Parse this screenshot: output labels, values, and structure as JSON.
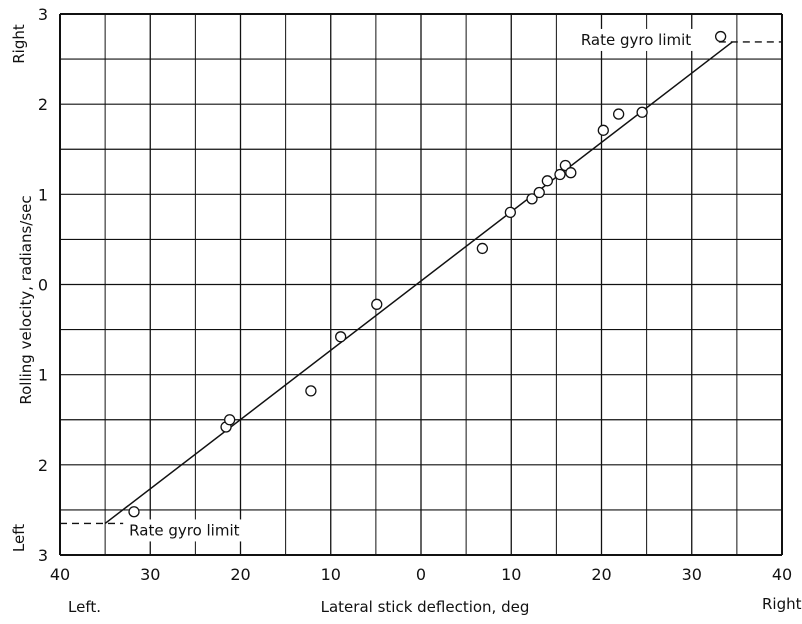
{
  "chart_data": {
    "type": "scatter",
    "title": "",
    "xlabel": "Lateral stick deflection, deg",
    "ylabel": "Rolling velocity, radians/sec",
    "xlim": [
      -40,
      40
    ],
    "ylim": [
      -3,
      3
    ],
    "x_ticks": [
      {
        "value": -40,
        "label": "40"
      },
      {
        "value": -30,
        "label": "30"
      },
      {
        "value": -20,
        "label": "20"
      },
      {
        "value": -10,
        "label": "10"
      },
      {
        "value": 0,
        "label": "0"
      },
      {
        "value": 10,
        "label": "10"
      },
      {
        "value": 20,
        "label": "20"
      },
      {
        "value": 30,
        "label": "30"
      },
      {
        "value": 40,
        "label": "40"
      }
    ],
    "y_ticks": [
      {
        "value": 3,
        "label": "3"
      },
      {
        "value": 2,
        "label": "2"
      },
      {
        "value": 1,
        "label": "1"
      },
      {
        "value": 0,
        "label": "0"
      },
      {
        "value": -1,
        "label": "1"
      },
      {
        "value": -2,
        "label": "2"
      },
      {
        "value": -3,
        "label": "3"
      }
    ],
    "x_side_labels": {
      "left": "Left.",
      "right": "Right"
    },
    "y_side_labels": {
      "top": "Right",
      "bottom": "Left"
    },
    "grid": true,
    "minor_grid_step_y": 0.5,
    "points": [
      {
        "x": -31.8,
        "y": -2.52
      },
      {
        "x": -21.6,
        "y": -1.58
      },
      {
        "x": -21.2,
        "y": -1.5
      },
      {
        "x": -12.2,
        "y": -1.18
      },
      {
        "x": -8.9,
        "y": -0.58
      },
      {
        "x": -4.9,
        "y": -0.22
      },
      {
        "x": 6.8,
        "y": 0.4
      },
      {
        "x": 9.9,
        "y": 0.8
      },
      {
        "x": 12.3,
        "y": 0.95
      },
      {
        "x": 13.1,
        "y": 1.02
      },
      {
        "x": 14.0,
        "y": 1.15
      },
      {
        "x": 15.4,
        "y": 1.22
      },
      {
        "x": 16.0,
        "y": 1.32
      },
      {
        "x": 16.6,
        "y": 1.24
      },
      {
        "x": 20.2,
        "y": 1.71
      },
      {
        "x": 21.9,
        "y": 1.89
      },
      {
        "x": 24.5,
        "y": 1.91
      },
      {
        "x": 33.2,
        "y": 2.75
      }
    ],
    "fit_line": [
      {
        "x": -35,
        "y": -2.65
      },
      {
        "x": 34.5,
        "y": 2.69
      }
    ],
    "limits": [
      {
        "label": "Rate gyro limit",
        "y": 2.69,
        "x_from": 33,
        "x_to": 40
      },
      {
        "label": "Rate gyro limit",
        "y": -2.65,
        "x_from": -40,
        "x_to": -33
      }
    ],
    "colors": {
      "ink": "#111111",
      "background": "#ffffff"
    }
  }
}
